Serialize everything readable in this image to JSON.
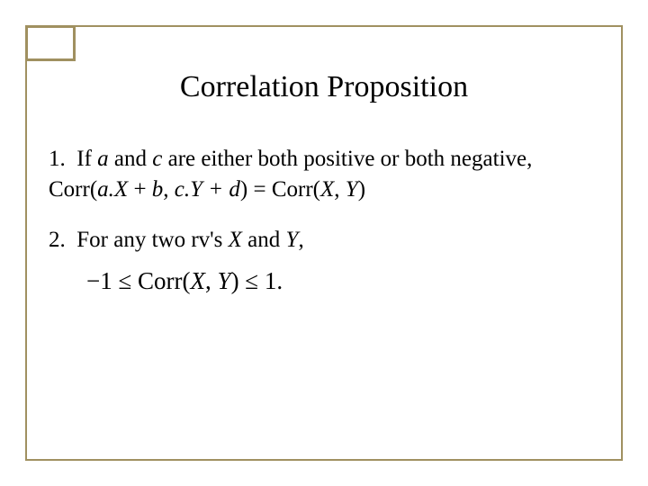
{
  "slide": {
    "title": "Correlation Proposition",
    "item1_num": "1.",
    "item1_pre": "  If ",
    "item1_a": "a",
    "item1_mid1": " and ",
    "item1_c": "c",
    "item1_mid2": " are either both positive or both negative, Corr(",
    "item1_aX": "a.X",
    "item1_plus1": " + ",
    "item1_b": "b",
    "item1_comma": ", ",
    "item1_cY": "c.Y + d",
    "item1_eq": ") = Corr(",
    "item1_X": "X",
    "item1_comma2": ", ",
    "item1_Y": "Y",
    "item1_close": ")",
    "item2_num": "2.",
    "item2_pre": "  For any two rv's ",
    "item2_X": "X",
    "item2_and": " and ",
    "item2_Y": "Y",
    "item2_comma": ",",
    "formula_neg1": "−1 ≤ Corr(",
    "formula_X": "X",
    "formula_comma": ", ",
    "formula_Y": "Y",
    "formula_end": ") ≤ 1."
  },
  "style": {
    "border_color": "#a09060",
    "background": "#ffffff",
    "text_color": "#000000",
    "title_fontsize": 34,
    "body_fontsize": 25,
    "formula_fontsize": 27,
    "font_family": "Times New Roman"
  }
}
